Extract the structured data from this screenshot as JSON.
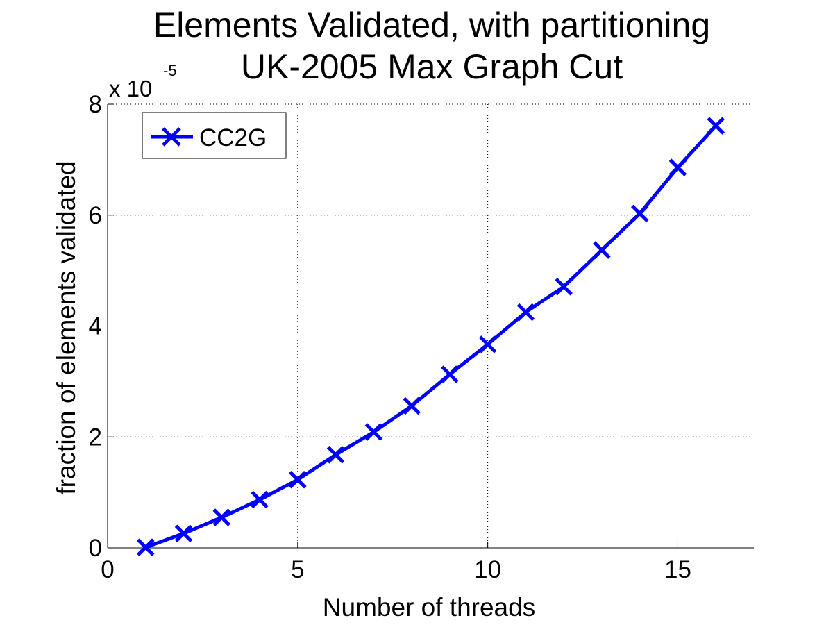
{
  "chart_data": {
    "type": "line",
    "title": [
      "Elements Validated, with partitioning",
      "UK-2005 Max Graph Cut"
    ],
    "xlabel": "Number of threads",
    "ylabel": "fraction of elements validated",
    "y_multiplier": {
      "base": "x 10",
      "exponent": "-5"
    },
    "xlim": [
      0,
      17
    ],
    "ylim": [
      0,
      8
    ],
    "x_ticks": [
      0,
      5,
      10,
      15
    ],
    "x_tick_labels": [
      "0",
      "5",
      "10",
      "15"
    ],
    "y_ticks": [
      0,
      2,
      4,
      6,
      8
    ],
    "y_tick_labels": [
      "0",
      "2",
      "4",
      "6",
      "8"
    ],
    "grid": true,
    "legend_position": "top-left",
    "colors": {
      "series": "#0000ff",
      "grid": "#000000",
      "axis": "#000000"
    },
    "series": [
      {
        "name": "CC2G",
        "marker": "x",
        "x": [
          1,
          2,
          3,
          4,
          5,
          6,
          7,
          8,
          9,
          10,
          11,
          12,
          13,
          14,
          15,
          16
        ],
        "y": [
          0.01,
          0.26,
          0.55,
          0.87,
          1.23,
          1.68,
          2.09,
          2.56,
          3.13,
          3.67,
          4.25,
          4.71,
          5.37,
          6.03,
          6.86,
          7.61
        ]
      }
    ]
  }
}
